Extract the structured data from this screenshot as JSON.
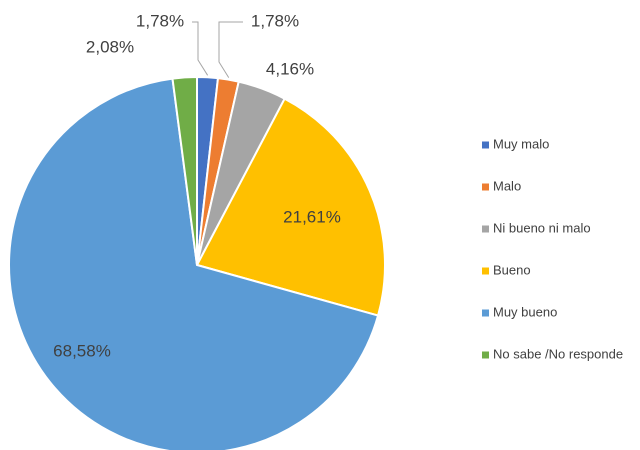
{
  "chart_data": {
    "type": "pie",
    "categories": [
      "Muy malo",
      "Malo",
      "Ni bueno ni malo",
      "Bueno",
      "Muy bueno",
      "No sabe /No responde"
    ],
    "values": [
      1.78,
      1.78,
      4.16,
      21.61,
      68.58,
      2.08
    ],
    "value_labels": [
      "1,78%",
      "1,78%",
      "4,16%",
      "21,61%",
      "68,58%",
      "2,08%"
    ],
    "colors": [
      "#4472c4",
      "#ed7d31",
      "#a5a5a5",
      "#ffc000",
      "#5b9bd5",
      "#70ad47"
    ],
    "legend": "right"
  }
}
